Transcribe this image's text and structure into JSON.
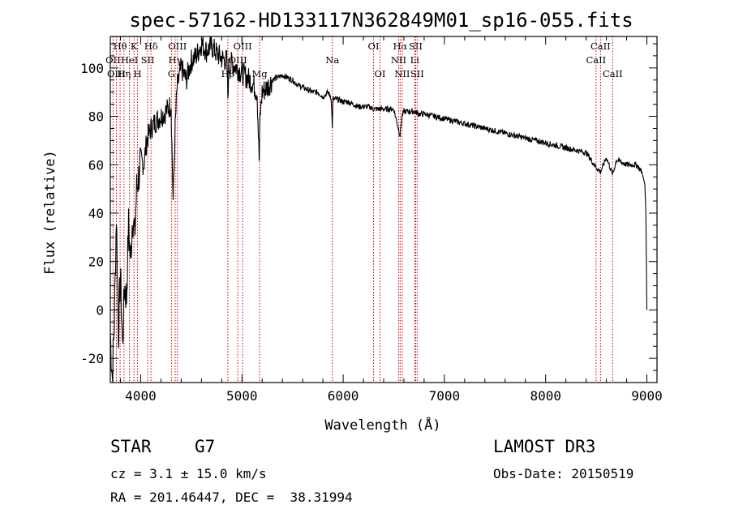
{
  "chart_data": {
    "type": "line",
    "title": "spec-57162-HD133117N362849M01_sp16-055.fits",
    "xlabel": "Wavelength (Å)",
    "ylabel": "Flux (relative)",
    "xlim": [
      3700,
      9100
    ],
    "ylim": [
      -30,
      113
    ],
    "xticks": [
      4000,
      5000,
      6000,
      7000,
      8000,
      9000
    ],
    "yticks": [
      -20,
      0,
      20,
      40,
      60,
      80,
      100
    ],
    "series": [
      {
        "name": "spectrum",
        "x": [
          3700,
          3720,
          3740,
          3760,
          3780,
          3800,
          3820,
          3840,
          3860,
          3880,
          3900,
          3920,
          3940,
          3960,
          3980,
          4000,
          4030,
          4060,
          4100,
          4150,
          4200,
          4250,
          4300,
          4320,
          4340,
          4360,
          4400,
          4450,
          4500,
          4550,
          4600,
          4650,
          4700,
          4750,
          4800,
          4850,
          4861,
          4870,
          4900,
          4950,
          5000,
          5050,
          5100,
          5150,
          5170,
          5180,
          5200,
          5250,
          5300,
          5350,
          5400,
          5450,
          5500,
          5550,
          5600,
          5650,
          5700,
          5750,
          5800,
          5850,
          5880,
          5893,
          5900,
          5950,
          6000,
          6050,
          6100,
          6150,
          6200,
          6250,
          6300,
          6350,
          6400,
          6450,
          6500,
          6540,
          6563,
          6580,
          6600,
          6650,
          6700,
          6750,
          6800,
          6900,
          7000,
          7100,
          7200,
          7300,
          7400,
          7500,
          7600,
          7700,
          7800,
          7900,
          8000,
          8100,
          8200,
          8300,
          8400,
          8498,
          8542,
          8600,
          8662,
          8700,
          8750,
          8800,
          8850,
          8900,
          8950,
          8980,
          8990,
          9000
        ],
        "y": [
          -10,
          -28,
          -5,
          40,
          -10,
          15,
          -15,
          10,
          5,
          35,
          20,
          40,
          30,
          50,
          55,
          62,
          60,
          70,
          75,
          78,
          80,
          82,
          85,
          45,
          75,
          92,
          100,
          95,
          103,
          105,
          110,
          107,
          109,
          106,
          104,
          103,
          88,
          100,
          102,
          100,
          98,
          96,
          94,
          90,
          62,
          80,
          90,
          92,
          95,
          96,
          97,
          96,
          95,
          93,
          92,
          91,
          90,
          90,
          88,
          90,
          88,
          76,
          87,
          87,
          86,
          86,
          85,
          84,
          84,
          84,
          83,
          83,
          83,
          83,
          83,
          76,
          72,
          80,
          82,
          82,
          82,
          81,
          81,
          80,
          79,
          78,
          77,
          76,
          75,
          74,
          73,
          72,
          71,
          70,
          69,
          68,
          67,
          66,
          65,
          59,
          57,
          63,
          56,
          62,
          61,
          60,
          60,
          60,
          57,
          52,
          40,
          0
        ]
      }
    ],
    "lines": [
      {
        "name": "Hθ",
        "x": 3797,
        "row": 1
      },
      {
        "name": "OII",
        "x": 3727,
        "row": 2
      },
      {
        "name": "OIII",
        "x": 3760,
        "row": 3
      },
      {
        "name": "HeI",
        "x": 3889,
        "row": 2
      },
      {
        "name": "K",
        "x": 3934,
        "row": 1
      },
      {
        "name": "Hη",
        "x": 3835,
        "row": 3
      },
      {
        "name": "H",
        "x": 3969,
        "row": 3
      },
      {
        "name": "SII",
        "x": 4069,
        "row": 2
      },
      {
        "name": "Hδ",
        "x": 4102,
        "row": 1
      },
      {
        "name": "OIII",
        "x": 4363,
        "row": 1
      },
      {
        "name": "Hγ",
        "x": 4341,
        "row": 2
      },
      {
        "name": "G",
        "x": 4304,
        "row": 3
      },
      {
        "name": "Hβ",
        "x": 4861,
        "row": 3
      },
      {
        "name": "OIII",
        "x": 5007,
        "row": 1
      },
      {
        "name": "OIII",
        "x": 4959,
        "row": 2
      },
      {
        "name": "Mg",
        "x": 5175,
        "row": 3
      },
      {
        "name": "Na",
        "x": 5893,
        "row": 2
      },
      {
        "name": "OI",
        "x": 6300,
        "row": 1
      },
      {
        "name": "OI",
        "x": 6364,
        "row": 3
      },
      {
        "name": "Hα",
        "x": 6563,
        "row": 1
      },
      {
        "name": "SII",
        "x": 6716,
        "row": 1
      },
      {
        "name": "NII",
        "x": 6548,
        "row": 2
      },
      {
        "name": "Li",
        "x": 6707,
        "row": 2
      },
      {
        "name": "NII",
        "x": 6583,
        "row": 3
      },
      {
        "name": "SII",
        "x": 6731,
        "row": 3
      },
      {
        "name": "CaII",
        "x": 8542,
        "row": 1
      },
      {
        "name": "CaII",
        "x": 8498,
        "row": 2
      },
      {
        "name": "CaII",
        "x": 8662,
        "row": 3
      }
    ],
    "line_color": "#cc0000",
    "grid": false
  },
  "info": {
    "object_class": "STAR",
    "subclass": "G7",
    "survey": "LAMOST DR3",
    "cz": "cz = 3.1 ± 15.0 km/s",
    "obs_date": "Obs-Date: 20150519",
    "coords": "RA = 201.46447, DEC =  38.31994"
  }
}
